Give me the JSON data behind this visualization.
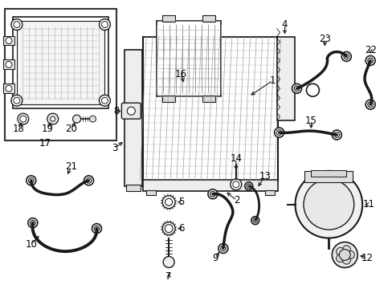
{
  "background_color": "#ffffff",
  "line_color": "#1a1a1a",
  "text_color": "#000000",
  "font_size": 8.5,
  "fig_w": 4.89,
  "fig_h": 3.6,
  "dpi": 100
}
